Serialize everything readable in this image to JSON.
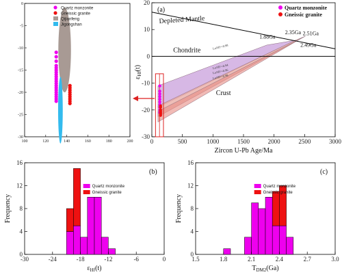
{
  "chart_data": [
    {
      "id": "inset",
      "type": "scatter",
      "xlim": [
        100,
        200
      ],
      "ylim": [
        -30,
        0
      ],
      "xticks": [
        "100",
        "120",
        "140",
        "160",
        "180",
        "200"
      ],
      "yticks": [
        "0",
        "-5",
        "-10",
        "-15",
        "-20",
        "-25",
        "-30"
      ],
      "legend": [
        "Quartz monzonite",
        "Gneissic granite",
        "Qijianfeng",
        "Jigongshan"
      ],
      "colors": {
        "quartz": "#ee00ee",
        "gneiss": "#ee1111",
        "qijianfeng": "#a89a94",
        "jigongshan": "#33bbee"
      },
      "ellipses": [
        {
          "name": "Qijianfeng",
          "cx": 138,
          "cy": -10.5,
          "rx": 6,
          "ry": 9.5
        },
        {
          "name": "Jigongshan",
          "cx": 134,
          "cy": -24,
          "rx": 2.2,
          "ry": 7.5
        }
      ],
      "series": [
        {
          "name": "Quartz monzonite",
          "x": [
            130,
            130,
            130,
            130,
            130,
            130,
            130,
            130,
            130,
            130,
            130,
            130,
            130,
            130,
            130,
            130,
            130,
            130,
            130,
            130
          ],
          "y": [
            -11,
            -13,
            -14,
            -15,
            -15.5,
            -16,
            -16.5,
            -17,
            -17.5,
            -18,
            -18.5,
            -19,
            -19.5,
            -20,
            -20.5,
            -21,
            -21.5,
            -22,
            -14.5,
            -12
          ]
        },
        {
          "name": "Gneissic granite",
          "x": [
            143,
            143,
            143,
            143,
            143,
            143,
            143,
            143,
            143
          ],
          "y": [
            -18.5,
            -19,
            -19.5,
            -20,
            -20.5,
            -21,
            -21.5,
            -22,
            -22.5
          ]
        }
      ]
    },
    {
      "id": "a",
      "type": "line",
      "panel_label": "(a)",
      "xlabel": "Zircon U-Pb Age/Ma",
      "ylabel": "ε",
      "ylabel_sub": "Hf",
      "ylabel_suffix": "(t)",
      "xlim": [
        0,
        3000
      ],
      "ylim": [
        -30,
        20
      ],
      "xticks": [
        "0",
        "500",
        "1000",
        "1500",
        "2000",
        "2500",
        "3000"
      ],
      "yticks": [
        "20",
        "10",
        "0",
        "-10",
        "-20",
        "-30"
      ],
      "legend": [
        "Quartz monzonite",
        "Gneissic granite"
      ],
      "labels": {
        "depleted": "Depleted Mantle",
        "chondrite": "Chondrite",
        "crust": "Crust"
      },
      "ages": [
        "1.88Ga",
        "2.35Ga",
        "2.51Ga",
        "2.49Ga"
      ],
      "lu_hf": [
        "Lu/Hf=-0.98",
        "Lu/Hf=-0.94",
        "Lu/Hf=-0.96",
        "Lu/Hf=-0.98"
      ],
      "depleted_mantle": {
        "x": [
          0,
          3000
        ],
        "y": [
          16.5,
          2.8
        ]
      },
      "chondrite_y": 0,
      "bands": [
        {
          "color": "#caa0dc",
          "opacity": 0.75,
          "top": [
            [
              100,
              -11
            ],
            [
              1880,
              4.2
            ]
          ],
          "bottom": [
            [
              100,
              -19
            ],
            [
              2350,
              6.0
            ]
          ]
        },
        {
          "color": "#e8a8a0",
          "opacity": 0.75,
          "top": [
            [
              100,
              -18.5
            ],
            [
              2350,
              6.0
            ]
          ],
          "bottom": [
            [
              100,
              -22.5
            ],
            [
              2510,
              7.5
            ]
          ]
        },
        {
          "color": "#e88c84",
          "opacity": 0.6,
          "top": [
            [
              100,
              -20.5
            ],
            [
              2510,
              7.5
            ]
          ],
          "bottom": [
            [
              100,
              -24.5
            ],
            [
              2490,
              7.3
            ]
          ]
        }
      ],
      "series": [
        {
          "name": "Quartz monzonite",
          "x": [
            130,
            130,
            130,
            130,
            130,
            130,
            130,
            130,
            130,
            130
          ],
          "y": [
            -11,
            -13,
            -14,
            -15,
            -16,
            -17,
            -18,
            -19,
            -20,
            -21
          ]
        },
        {
          "name": "Gneissic granite",
          "x": [
            143,
            143,
            143,
            143,
            143,
            143,
            143
          ],
          "y": [
            -18.5,
            -19,
            -20,
            -20.5,
            -21,
            -21.5,
            -22
          ]
        }
      ]
    },
    {
      "id": "b",
      "type": "bar",
      "panel_label": "(b)",
      "xlabel": "ε",
      "xlabel_sub": "Hf",
      "xlabel_suffix": "(t)",
      "ylabel": "Frequency",
      "xlim": [
        -30,
        0
      ],
      "ylim": [
        0,
        16
      ],
      "xticks": [
        "-30",
        "-24",
        "-18",
        "-12",
        "-6",
        "0"
      ],
      "yticks": [
        "0",
        "4",
        "8",
        "12",
        "16"
      ],
      "legend": [
        "Quartz monzonite",
        "Gneissic granite"
      ],
      "bin_width": 1.5,
      "bins": [
        {
          "x0": -21.0,
          "quartz": 4,
          "gneiss": 4
        },
        {
          "x0": -19.5,
          "quartz": 5,
          "gneiss": 10
        },
        {
          "x0": -18.0,
          "quartz": 3,
          "gneiss": 0
        },
        {
          "x0": -16.5,
          "quartz": 10,
          "gneiss": 0
        },
        {
          "x0": -15.0,
          "quartz": 10,
          "gneiss": 0
        },
        {
          "x0": -13.5,
          "quartz": 3,
          "gneiss": 0
        },
        {
          "x0": -12.0,
          "quartz": 1,
          "gneiss": 0
        }
      ]
    },
    {
      "id": "c",
      "type": "bar",
      "panel_label": "(c)",
      "xlabel": "T",
      "xlabel_sub": "DM2",
      "xlabel_suffix": "(Ga)",
      "ylabel": "Frequency",
      "xlim": [
        1.5,
        3.0
      ],
      "ylim": [
        0,
        16
      ],
      "xticks": [
        "1.5",
        "1.8",
        "2.1",
        "2.4",
        "2.7",
        "3.0"
      ],
      "yticks": [
        "0",
        "4",
        "8",
        "12",
        "16"
      ],
      "legend": [
        "Quartz monzonite",
        "Gneissic granite"
      ],
      "bin_width": 0.075,
      "bins": [
        {
          "x0": 1.8,
          "quartz": 1,
          "gneiss": 0
        },
        {
          "x0": 1.875,
          "quartz": 0,
          "gneiss": 0
        },
        {
          "x0": 1.95,
          "quartz": 0,
          "gneiss": 0
        },
        {
          "x0": 2.025,
          "quartz": 3,
          "gneiss": 0
        },
        {
          "x0": 2.1,
          "quartz": 9,
          "gneiss": 0
        },
        {
          "x0": 2.175,
          "quartz": 8,
          "gneiss": 0
        },
        {
          "x0": 2.25,
          "quartz": 10,
          "gneiss": 0
        },
        {
          "x0": 2.325,
          "quartz": 5,
          "gneiss": 6
        },
        {
          "x0": 2.4,
          "quartz": 5,
          "gneiss": 7
        },
        {
          "x0": 2.475,
          "quartz": 3,
          "gneiss": 0
        }
      ]
    }
  ]
}
